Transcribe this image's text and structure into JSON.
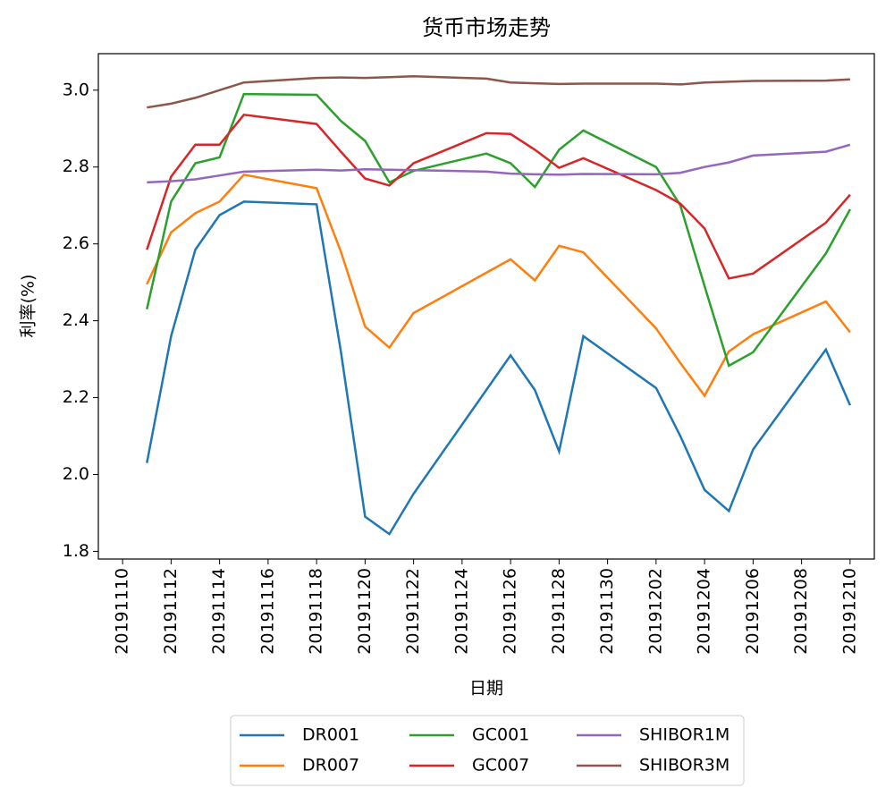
{
  "chart_data": {
    "type": "line",
    "title": "货币市场走势",
    "xlabel": "日期",
    "ylabel": "利率(%)",
    "x": [
      "20191111",
      "20191112",
      "20191113",
      "20191114",
      "20191115",
      "20191118",
      "20191119",
      "20191120",
      "20191121",
      "20191122",
      "20191125",
      "20191126",
      "20191127",
      "20191128",
      "20191129",
      "20191202",
      "20191203",
      "20191204",
      "20191205",
      "20191206",
      "20191209",
      "20191210"
    ],
    "series": [
      {
        "name": "DR001",
        "color": "#1f77b4",
        "values": [
          2.03,
          2.36,
          2.585,
          2.675,
          2.71,
          2.703,
          2.32,
          1.89,
          1.845,
          1.95,
          2.22,
          2.31,
          2.22,
          2.06,
          2.36,
          2.225,
          2.1,
          1.96,
          1.905,
          2.065,
          2.325,
          2.18
        ]
      },
      {
        "name": "DR007",
        "color": "#ff7f0e",
        "values": [
          2.495,
          2.63,
          2.68,
          2.71,
          2.78,
          2.745,
          2.58,
          2.385,
          2.33,
          2.42,
          2.525,
          2.56,
          2.505,
          2.595,
          2.578,
          2.38,
          2.29,
          2.205,
          2.32,
          2.365,
          2.45,
          2.37
        ]
      },
      {
        "name": "GC001",
        "color": "#2ca02c",
        "values": [
          2.43,
          2.71,
          2.81,
          2.825,
          2.99,
          2.988,
          2.92,
          2.868,
          2.76,
          2.79,
          2.835,
          2.81,
          2.748,
          2.845,
          2.895,
          2.8,
          2.7,
          2.49,
          2.283,
          2.318,
          2.575,
          2.69
        ]
      },
      {
        "name": "GC007",
        "color": "#d62728",
        "values": [
          2.585,
          2.775,
          2.858,
          2.858,
          2.936,
          2.912,
          2.84,
          2.77,
          2.752,
          2.81,
          2.888,
          2.886,
          2.845,
          2.798,
          2.823,
          2.74,
          2.705,
          2.64,
          2.51,
          2.523,
          2.655,
          2.728
        ]
      },
      {
        "name": "SHIBOR1M",
        "color": "#9467bd",
        "values": [
          2.76,
          2.763,
          2.768,
          2.778,
          2.788,
          2.793,
          2.791,
          2.794,
          2.793,
          2.792,
          2.788,
          2.783,
          2.781,
          2.78,
          2.782,
          2.781,
          2.785,
          2.8,
          2.812,
          2.83,
          2.84,
          2.858
        ]
      },
      {
        "name": "SHIBOR3M",
        "color": "#8c564b",
        "values": [
          2.955,
          2.965,
          2.98,
          3.0,
          3.02,
          3.032,
          3.033,
          3.032,
          3.034,
          3.036,
          3.03,
          3.02,
          3.018,
          3.016,
          3.017,
          3.017,
          3.015,
          3.02,
          3.022,
          3.024,
          3.025,
          3.028
        ]
      }
    ],
    "xlim": [
      "20191109",
      "20191211"
    ],
    "xticks": [
      "20191110",
      "20191112",
      "20191114",
      "20191116",
      "20191118",
      "20191120",
      "20191122",
      "20191124",
      "20191126",
      "20191128",
      "20191130",
      "20191202",
      "20191204",
      "20191206",
      "20191208",
      "20191210"
    ],
    "ylim": [
      1.78,
      3.095
    ],
    "yticks": [
      1.8,
      {
        "value": 2,
        "label": "2.0"
      },
      2.2,
      2.4,
      2.6,
      2.8,
      {
        "value": 3,
        "label": "3.0"
      }
    ],
    "grid": false,
    "legend": "bottom"
  }
}
